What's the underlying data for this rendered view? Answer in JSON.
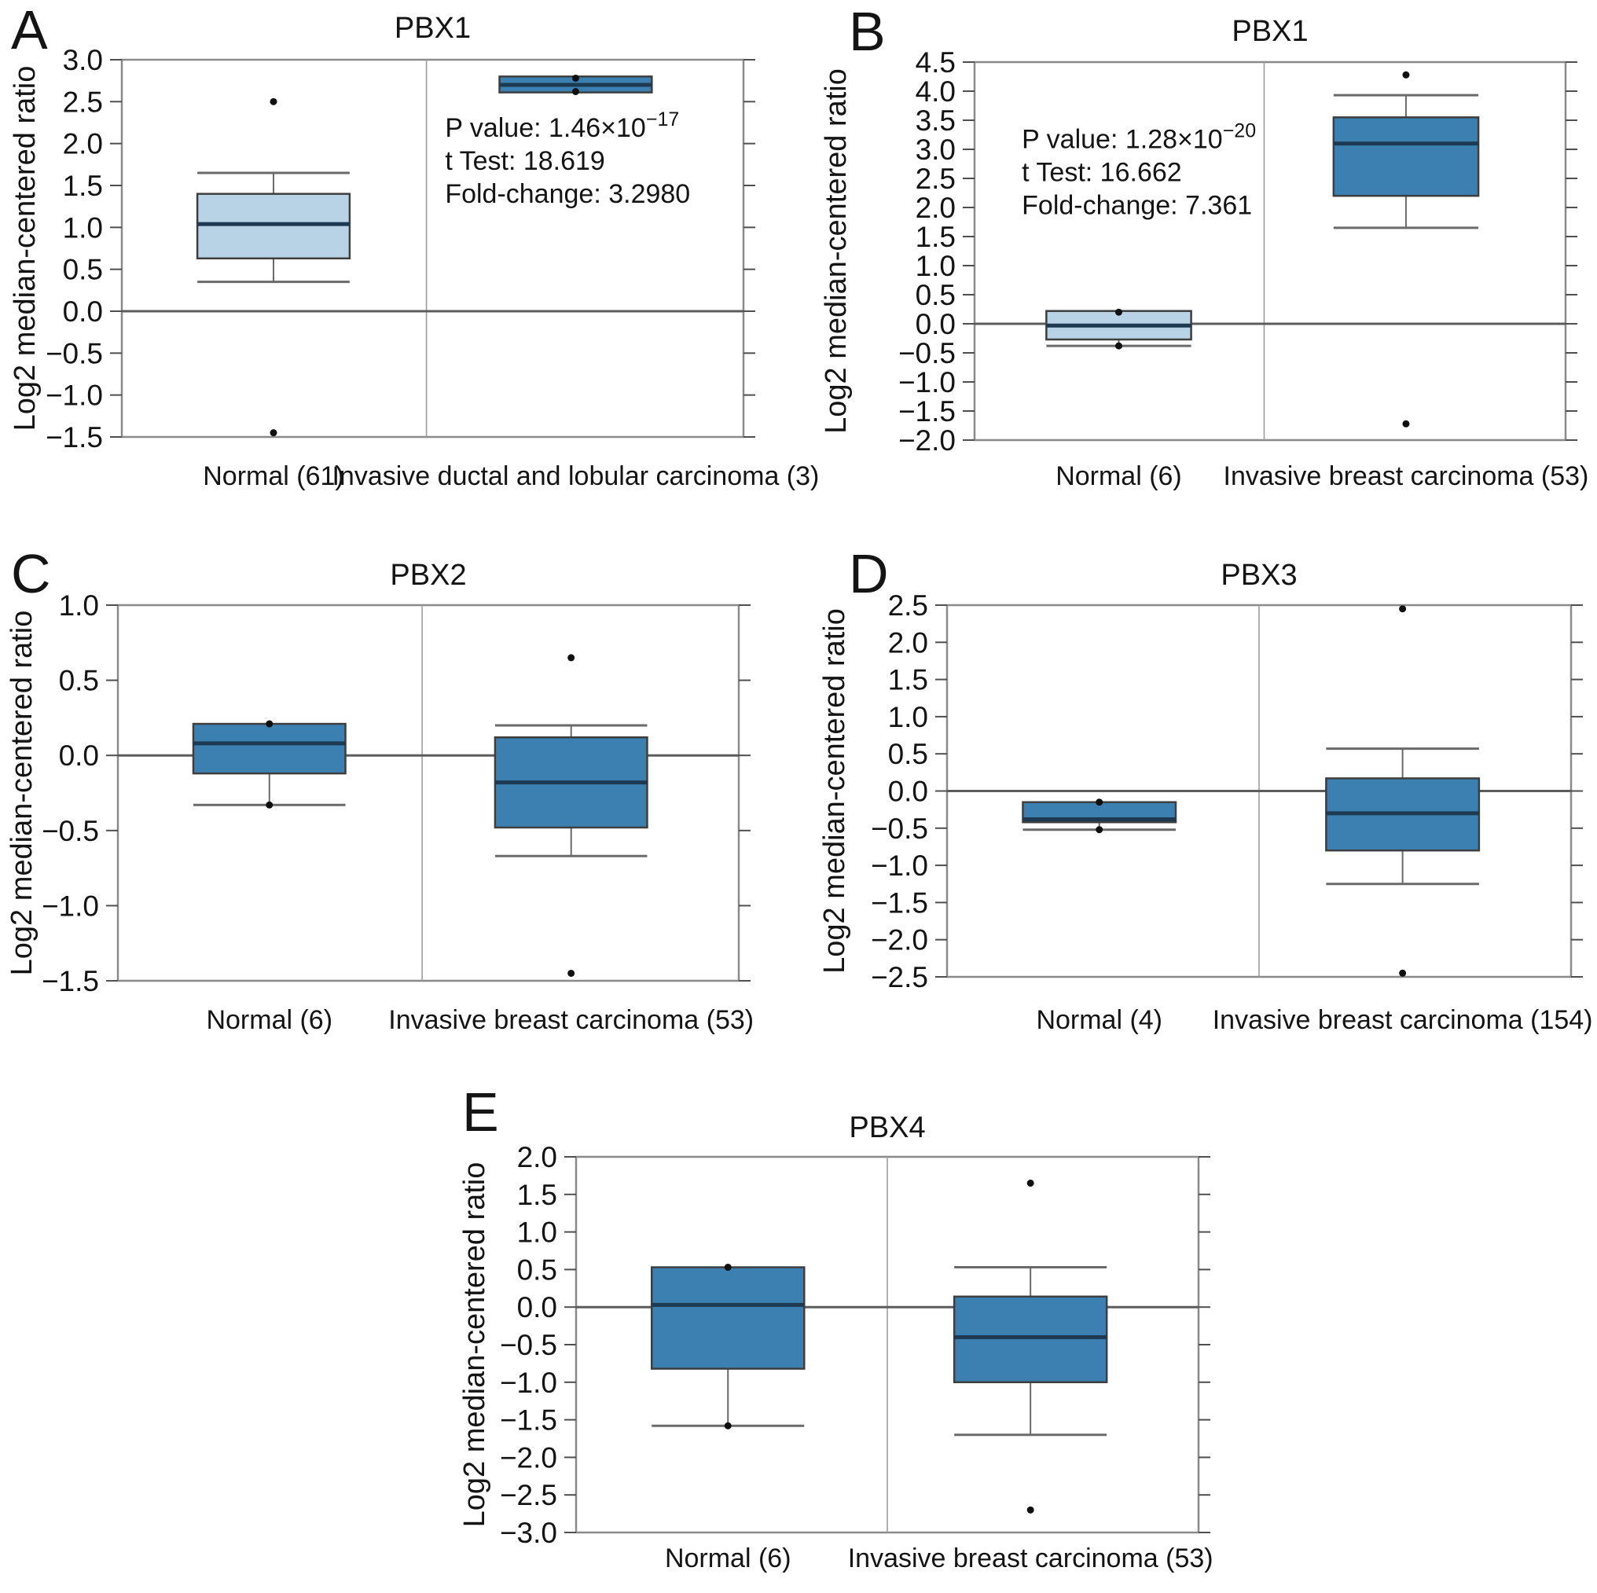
{
  "page": {
    "background": "#ffffff"
  },
  "colors": {
    "box_light": "#b9d3e6",
    "box_dark": "#3b80b1",
    "median": "#1d3a52",
    "box_border": "#3e3e3e",
    "whisker": "#6a6a6a",
    "frame": "#8a8a8a",
    "divider": "#9c9c9c",
    "zero_line": "#5c5c5c",
    "tick": "#4f4f4f",
    "text": "#141414",
    "point": "#101010"
  },
  "chart_data": [
    {
      "type": "box",
      "panel": "A",
      "title": "PBX1",
      "ylabel": "Log2 median-centered ratio",
      "ylim": [
        -1.5,
        3.0
      ],
      "yticks": [
        "3.0",
        "2.5",
        "2.0",
        "1.5",
        "1.0",
        "0.5",
        "0.0",
        "−0.5",
        "−1.0",
        "−1.5"
      ],
      "grid": false,
      "groups": [
        {
          "label": "Normal (61)",
          "shade": "light",
          "q1": 0.63,
          "median": 1.04,
          "q3": 1.4,
          "whisker_low": 0.35,
          "whisker_high": 1.65,
          "outliers": [
            2.5,
            -1.45
          ],
          "points": []
        },
        {
          "label": "Invasive ductal and lobular carcinoma (3)",
          "shade": "dark",
          "q1": 2.61,
          "median": 2.7,
          "q3": 2.8,
          "whisker_low": 2.61,
          "whisker_high": 2.8,
          "outliers": [],
          "points": [
            2.78,
            2.62
          ]
        }
      ],
      "annotation": {
        "x_frac": 0.52,
        "y_value": 2.08,
        "lines": [
          {
            "text": "P value: 1.46×10",
            "sup": "−17"
          },
          {
            "text": "t Test: 18.619",
            "sup": ""
          },
          {
            "text": "Fold-change: 3.2980",
            "sup": ""
          }
        ]
      }
    },
    {
      "type": "box",
      "panel": "B",
      "title": "PBX1",
      "ylabel": "Log2 median-centered ratio",
      "ylim": [
        -2.0,
        4.5
      ],
      "yticks": [
        "4.5",
        "4.0",
        "3.5",
        "3.0",
        "2.5",
        "2.0",
        "1.5",
        "1.0",
        "0.5",
        "0.0",
        "−0.5",
        "−1.0",
        "−1.5",
        "−2.0"
      ],
      "grid": false,
      "groups": [
        {
          "label": "Normal (6)",
          "shade": "light",
          "q1": -0.27,
          "median": -0.03,
          "q3": 0.22,
          "whisker_low": -0.38,
          "whisker_high": 0.22,
          "outliers": [],
          "points": [
            0.2,
            -0.38
          ]
        },
        {
          "label": "Invasive breast carcinoma (53)",
          "shade": "dark",
          "q1": 2.2,
          "median": 3.1,
          "q3": 3.55,
          "whisker_low": 1.65,
          "whisker_high": 3.93,
          "outliers": [
            4.28,
            -1.72
          ],
          "points": []
        }
      ],
      "annotation": {
        "x_frac": 0.08,
        "y_value": 3.02,
        "lines": [
          {
            "text": "P value: 1.28×10",
            "sup": "−20"
          },
          {
            "text": "t Test: 16.662",
            "sup": ""
          },
          {
            "text": "Fold-change: 7.361",
            "sup": ""
          }
        ]
      }
    },
    {
      "type": "box",
      "panel": "C",
      "title": "PBX2",
      "ylabel": "Log2 median-centered ratio",
      "ylim": [
        -1.5,
        1.0
      ],
      "yticks": [
        "1.0",
        "0.5",
        "0.0",
        "−0.5",
        "−1.0",
        "−1.5"
      ],
      "grid": false,
      "groups": [
        {
          "label": "Normal (6)",
          "shade": "dark",
          "q1": -0.12,
          "median": 0.08,
          "q3": 0.21,
          "whisker_low": -0.33,
          "whisker_high": 0.21,
          "outliers": [],
          "points": [
            0.21,
            -0.33
          ]
        },
        {
          "label": "Invasive breast carcinoma (53)",
          "shade": "dark",
          "q1": -0.48,
          "median": -0.18,
          "q3": 0.12,
          "whisker_low": -0.67,
          "whisker_high": 0.2,
          "outliers": [
            0.65,
            -1.45
          ],
          "points": []
        }
      ],
      "annotation": null
    },
    {
      "type": "box",
      "panel": "D",
      "title": "PBX3",
      "ylabel": "Log2 median-centered ratio",
      "ylim": [
        -2.5,
        2.5
      ],
      "yticks": [
        "2.5",
        "2.0",
        "1.5",
        "1.0",
        "0.5",
        "0.0",
        "−0.5",
        "−1.0",
        "−1.5",
        "−2.0",
        "−2.5"
      ],
      "grid": false,
      "groups": [
        {
          "label": "Normal (4)",
          "shade": "dark",
          "q1": -0.42,
          "median": -0.38,
          "q3": -0.15,
          "whisker_low": -0.52,
          "whisker_high": -0.15,
          "outliers": [],
          "points": [
            -0.15,
            -0.52
          ]
        },
        {
          "label": "Invasive breast carcinoma (154)",
          "shade": "dark",
          "q1": -0.8,
          "median": -0.3,
          "q3": 0.17,
          "whisker_low": -1.25,
          "whisker_high": 0.57,
          "outliers": [
            2.45,
            -2.45
          ],
          "points": []
        }
      ],
      "annotation": null
    },
    {
      "type": "box",
      "panel": "E",
      "title": "PBX4",
      "ylabel": "Log2 median-centered ratio",
      "ylim": [
        -3.0,
        2.0
      ],
      "yticks": [
        "2.0",
        "1.5",
        "1.0",
        "0.5",
        "0.0",
        "−0.5",
        "−1.0",
        "−1.5",
        "−2.0",
        "−2.5",
        "−3.0"
      ],
      "grid": false,
      "groups": [
        {
          "label": "Normal (6)",
          "shade": "dark",
          "q1": -0.82,
          "median": 0.03,
          "q3": 0.53,
          "whisker_low": -1.58,
          "whisker_high": 0.53,
          "outliers": [],
          "points": [
            0.53,
            -1.58
          ]
        },
        {
          "label": "Invasive breast carcinoma (53)",
          "shade": "dark",
          "q1": -1.0,
          "median": -0.4,
          "q3": 0.14,
          "whisker_low": -1.7,
          "whisker_high": 0.53,
          "outliers": [
            1.65,
            -2.7
          ],
          "points": []
        }
      ],
      "annotation": null
    }
  ]
}
